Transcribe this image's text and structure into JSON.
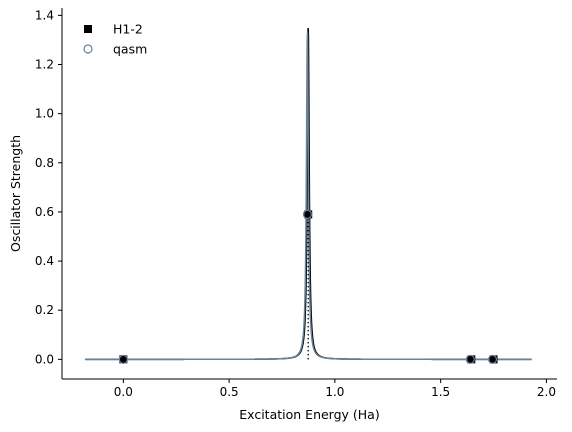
{
  "chart_data": {
    "type": "line",
    "xlabel": "Excitation Energy (Ha)",
    "ylabel": "Oscillator Strength",
    "xlim": [
      -0.29,
      2.05
    ],
    "ylim": [
      -0.08,
      1.43
    ],
    "xticks": [
      "0.0",
      "0.5",
      "1.0",
      "1.5",
      "2.0"
    ],
    "yticks": [
      "0.0",
      "0.2",
      "0.4",
      "0.6",
      "0.8",
      "1.0",
      "1.2",
      "1.4"
    ],
    "grid": false,
    "legend": {
      "position": "top-left",
      "entries": [
        {
          "label": "H1-2",
          "marker": "filled-square",
          "color": "#000000"
        },
        {
          "label": "qasm",
          "marker": "open-circle",
          "color": "#6b8299"
        }
      ]
    },
    "series": [
      {
        "name": "H1-2",
        "kind": "stick-markers",
        "color": "#000000",
        "points": [
          [
            0.0,
            0.0
          ],
          [
            0.874,
            0.59
          ],
          [
            1.645,
            0.0
          ],
          [
            1.75,
            0.0
          ]
        ]
      },
      {
        "name": "qasm",
        "kind": "stick-markers",
        "color": "#6b8299",
        "points": [
          [
            0.0,
            0.0
          ],
          [
            0.87,
            0.59
          ],
          [
            1.64,
            0.0
          ],
          [
            1.745,
            0.0
          ]
        ]
      }
    ],
    "spectra": [
      {
        "color": "#000000",
        "center": 0.874,
        "peak": 1.36,
        "width": 0.011,
        "range": [
          -0.18,
          1.93
        ]
      },
      {
        "color": "#6b8299",
        "center": 0.87,
        "peak": 1.34,
        "width": 0.011,
        "range": [
          -0.18,
          1.93
        ]
      }
    ],
    "vertical_lines": [
      {
        "x": 0.874,
        "y": 0.59,
        "style": "dotted",
        "color": "#000000"
      }
    ]
  }
}
